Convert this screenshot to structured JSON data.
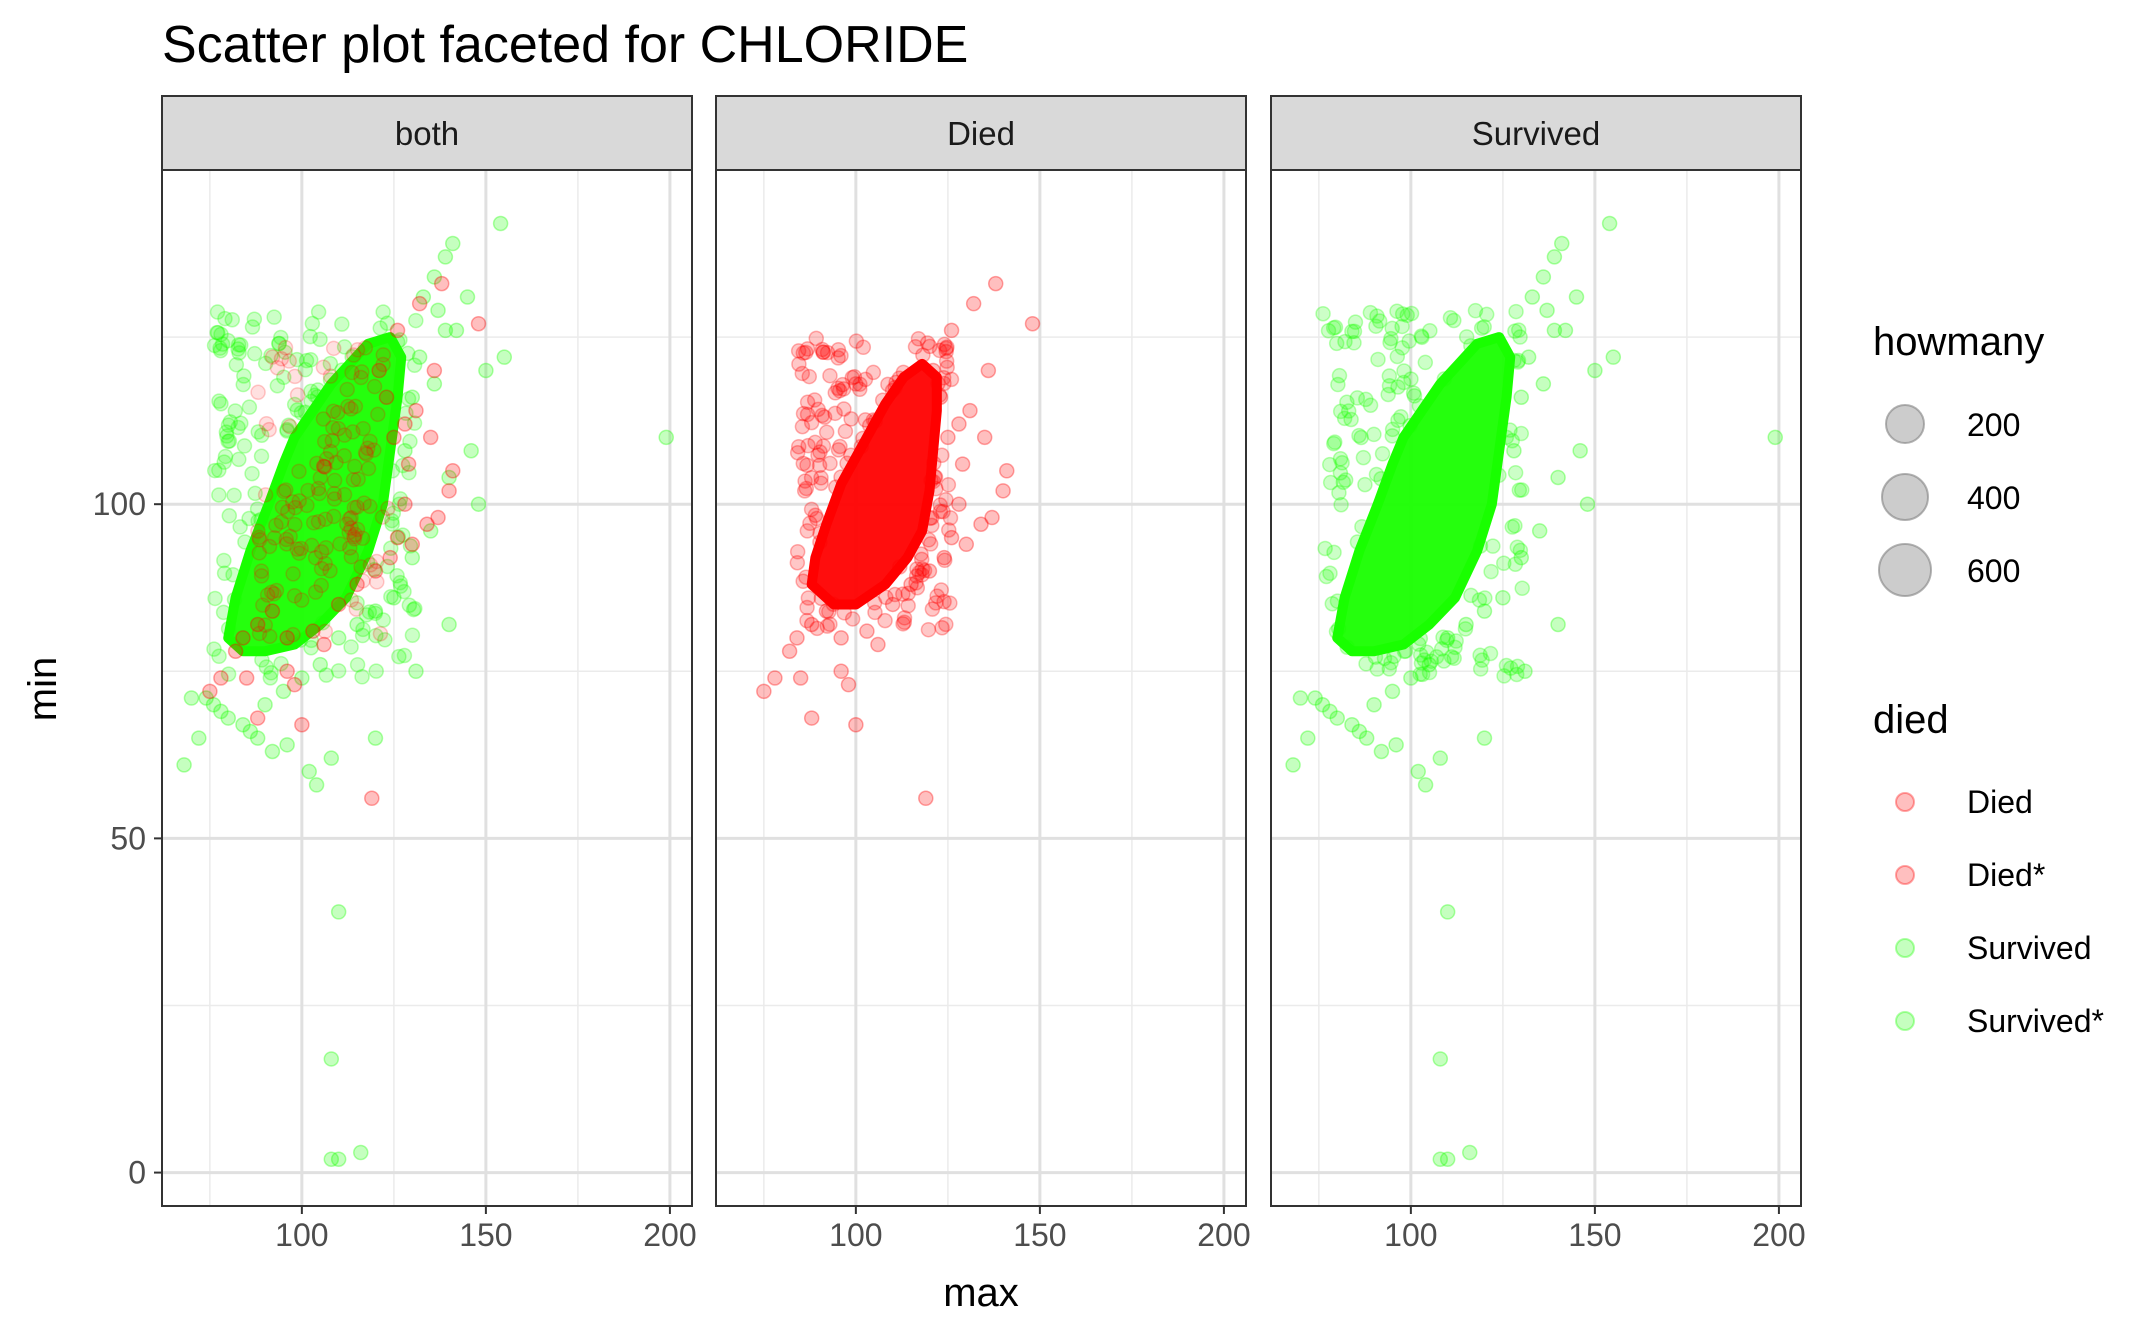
{
  "chart_data": {
    "type": "scatter",
    "title": "Scatter plot faceted for CHLORIDE",
    "xlabel": "max",
    "ylabel": "min",
    "xlim": [
      62,
      206
    ],
    "ylim": [
      -5,
      150
    ],
    "x_ticks": [
      100,
      150,
      200
    ],
    "y_ticks": [
      0,
      50,
      100
    ],
    "grid": true,
    "legend_placement": "right",
    "facets": [
      "both",
      "Died",
      "Survived"
    ],
    "series": [
      {
        "name": "Died",
        "color": "#ff0000",
        "facets": [
          "both",
          "Died"
        ]
      },
      {
        "name": "Died*",
        "color": "#ff0000",
        "facets": [
          "both",
          "Died"
        ]
      },
      {
        "name": "Survived",
        "color": "#19ff00",
        "facets": [
          "both",
          "Survived"
        ]
      },
      {
        "name": "Survived*",
        "color": "#19ff00",
        "facets": [
          "both",
          "Survived"
        ]
      }
    ],
    "died_points": [
      [
        126,
        126
      ],
      [
        138,
        133
      ],
      [
        148,
        127
      ],
      [
        141,
        105
      ],
      [
        132,
        130
      ],
      [
        136,
        120
      ],
      [
        135,
        110
      ],
      [
        140,
        102
      ],
      [
        128,
        100
      ],
      [
        126,
        95
      ],
      [
        119,
        56
      ],
      [
        100,
        67
      ],
      [
        98,
        73
      ],
      [
        96,
        75
      ],
      [
        88,
        68
      ],
      [
        85,
        74
      ],
      [
        75,
        72
      ],
      [
        78,
        74
      ],
      [
        82,
        78
      ],
      [
        84,
        80
      ],
      [
        88,
        82
      ],
      [
        92,
        84
      ],
      [
        96,
        80
      ],
      [
        103,
        81
      ],
      [
        106,
        79
      ],
      [
        110,
        85
      ],
      [
        115,
        88
      ],
      [
        120,
        90
      ],
      [
        124,
        92
      ],
      [
        130,
        94
      ],
      [
        134,
        97
      ],
      [
        137,
        98
      ],
      [
        125,
        110
      ],
      [
        123,
        116
      ],
      [
        121,
        120
      ],
      [
        128,
        112
      ],
      [
        131,
        114
      ],
      [
        129,
        106
      ]
    ],
    "survived_points": [
      [
        154,
        142
      ],
      [
        141,
        139
      ],
      [
        139,
        137
      ],
      [
        136,
        134
      ],
      [
        133,
        131
      ],
      [
        137,
        129
      ],
      [
        139,
        126
      ],
      [
        145,
        131
      ],
      [
        150,
        120
      ],
      [
        155,
        122
      ],
      [
        199,
        110
      ],
      [
        148,
        100
      ],
      [
        140,
        82
      ],
      [
        131,
        75
      ],
      [
        120,
        65
      ],
      [
        110,
        39
      ],
      [
        108,
        17
      ],
      [
        108,
        2
      ],
      [
        110,
        2
      ],
      [
        116,
        3
      ],
      [
        104,
        58
      ],
      [
        108,
        62
      ],
      [
        102,
        60
      ],
      [
        96,
        64
      ],
      [
        92,
        63
      ],
      [
        88,
        65
      ],
      [
        86,
        66
      ],
      [
        84,
        67
      ],
      [
        80,
        68
      ],
      [
        78,
        69
      ],
      [
        76,
        70
      ],
      [
        74,
        71
      ],
      [
        70,
        71
      ],
      [
        68,
        61
      ],
      [
        72,
        65
      ],
      [
        90,
        70
      ],
      [
        95,
        72
      ],
      [
        100,
        74
      ],
      [
        105,
        76
      ],
      [
        110,
        80
      ],
      [
        115,
        82
      ],
      [
        120,
        84
      ],
      [
        125,
        86
      ],
      [
        130,
        92
      ],
      [
        135,
        96
      ],
      [
        140,
        104
      ],
      [
        146,
        108
      ],
      [
        136,
        118
      ],
      [
        132,
        122
      ],
      [
        142,
        126
      ],
      [
        130,
        116
      ],
      [
        128,
        108
      ]
    ],
    "dense_regions": {
      "died": [
        [
          88,
          88
        ],
        [
          89,
          92
        ],
        [
          92,
          97
        ],
        [
          96,
          103
        ],
        [
          100,
          107
        ],
        [
          104,
          111
        ],
        [
          108,
          115
        ],
        [
          113,
          119
        ],
        [
          118,
          121
        ],
        [
          122,
          119
        ],
        [
          122,
          114
        ],
        [
          121,
          108
        ],
        [
          120,
          102
        ],
        [
          118,
          96
        ],
        [
          114,
          92
        ],
        [
          108,
          88
        ],
        [
          100,
          85
        ],
        [
          94,
          85
        ]
      ],
      "survived": [
        [
          80,
          80
        ],
        [
          82,
          86
        ],
        [
          86,
          93
        ],
        [
          91,
          100
        ],
        [
          95,
          106
        ],
        [
          98,
          110
        ],
        [
          103,
          114
        ],
        [
          108,
          118
        ],
        [
          113,
          121
        ],
        [
          118,
          124
        ],
        [
          124,
          125
        ],
        [
          127,
          122
        ],
        [
          126,
          116
        ],
        [
          124,
          108
        ],
        [
          122,
          100
        ],
        [
          118,
          93
        ],
        [
          112,
          86
        ],
        [
          105,
          82
        ],
        [
          98,
          79
        ],
        [
          90,
          78
        ],
        [
          84,
          78
        ]
      ]
    },
    "size_legend": {
      "title": "howmany",
      "entries": [
        "200",
        "400",
        "600"
      ]
    },
    "color_legend": {
      "title": "died",
      "entries": [
        {
          "label": "Died",
          "color": "#ff0000"
        },
        {
          "label": "Died*",
          "color": "#ff0000"
        },
        {
          "label": "Survived",
          "color": "#19ff00"
        },
        {
          "label": "Survived*",
          "color": "#19ff00"
        }
      ]
    }
  }
}
